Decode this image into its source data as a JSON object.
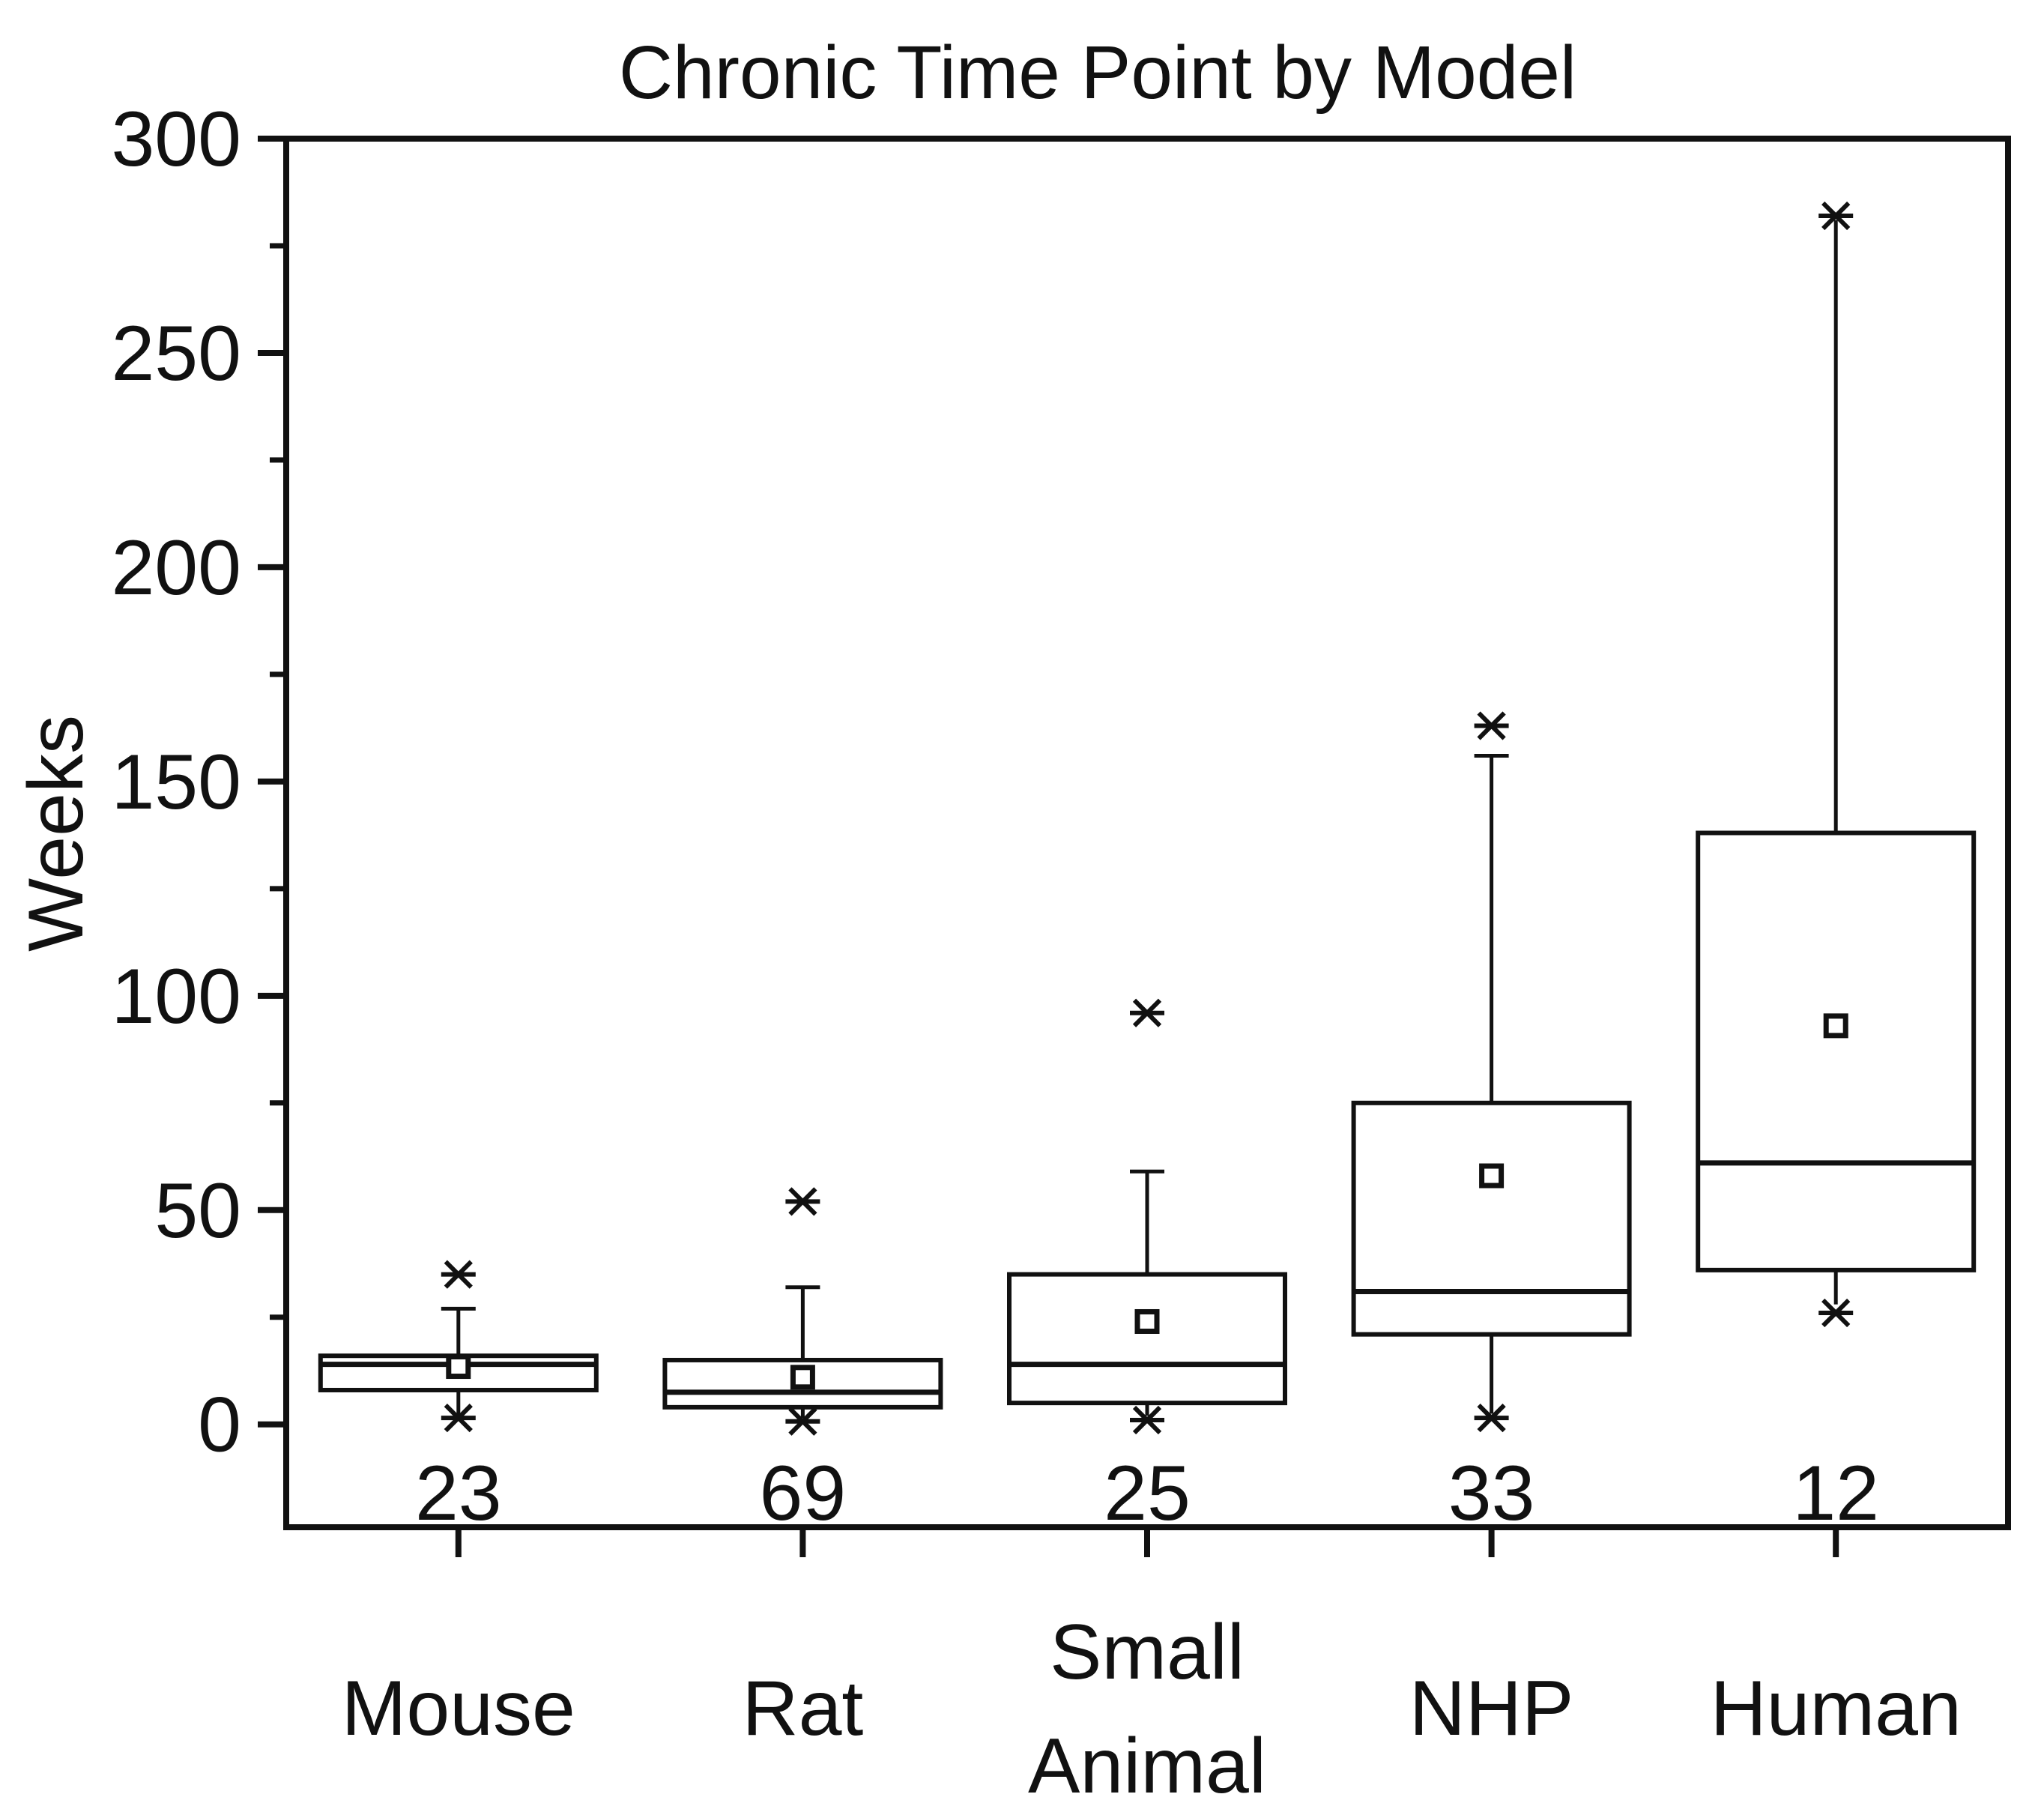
{
  "title": "Chronic Time Point by Model",
  "y_axis": {
    "label": "Weeks",
    "tick_labels": [
      "300",
      "250",
      "200",
      "150",
      "100",
      "50",
      "0"
    ]
  },
  "colors": {
    "stroke": "#111111",
    "background": "#ffffff"
  },
  "chart_data": {
    "type": "box",
    "title": "Chronic Time Point by Model",
    "ylabel": "Weeks",
    "ylim": [
      -24,
      300
    ],
    "yticks": [
      0,
      50,
      100,
      150,
      200,
      250,
      300
    ],
    "minor_yticks": [
      25,
      75,
      125,
      175,
      225,
      275
    ],
    "grid": false,
    "legend": "none",
    "categories": [
      {
        "label_lines": [
          "Mouse"
        ],
        "count": "23",
        "q1": 8,
        "median": 14,
        "q3": 16,
        "mean": 13.5,
        "whisker_low": 2,
        "whisker_high": 27,
        "cap_high": true,
        "outliers_high": [
          35
        ],
        "outliers_low": [
          1.5
        ]
      },
      {
        "label_lines": [
          "Rat"
        ],
        "count": "69",
        "q1": 4,
        "median": 7.5,
        "q3": 15,
        "mean": 11,
        "whisker_low": 1.5,
        "whisker_high": 32,
        "cap_high": true,
        "outliers_high": [
          52
        ],
        "outliers_low": [
          0.7
        ]
      },
      {
        "label_lines": [
          "Small",
          "Animal"
        ],
        "count": "25",
        "q1": 5,
        "median": 14,
        "q3": 35,
        "mean": 24,
        "whisker_low": 2,
        "whisker_high": 59,
        "cap_high": true,
        "outliers_high": [
          96
        ],
        "outliers_low": [
          1
        ]
      },
      {
        "label_lines": [
          "NHP"
        ],
        "count": "33",
        "q1": 21,
        "median": 31,
        "q3": 75,
        "mean": 58,
        "whisker_low": 2.5,
        "whisker_high": 156,
        "cap_high": true,
        "outliers_high": [
          163
        ],
        "outliers_low": [
          1.5
        ]
      },
      {
        "label_lines": [
          "Human"
        ],
        "count": "12",
        "q1": 36,
        "median": 61,
        "q3": 138,
        "mean": 93,
        "whisker_low": 28,
        "whisker_high": 281,
        "cap_high": false,
        "outliers_high": [
          282
        ],
        "outliers_low": [
          26
        ]
      }
    ]
  }
}
